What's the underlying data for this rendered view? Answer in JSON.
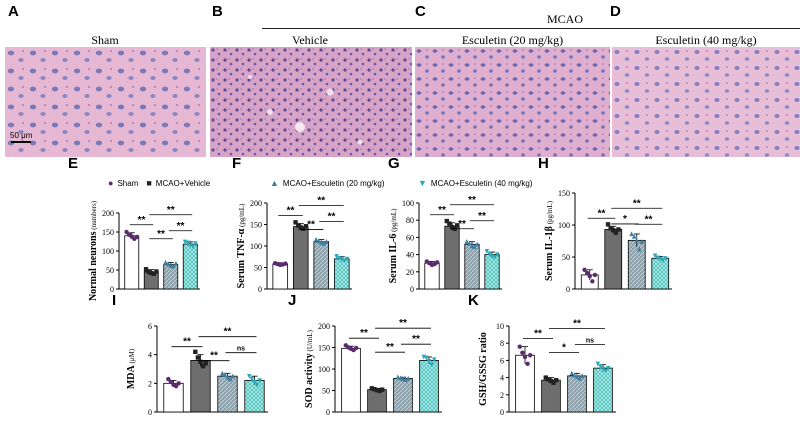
{
  "panels_top": [
    {
      "letter": "A",
      "label": "Sham"
    },
    {
      "letter": "B",
      "label": "Vehicle"
    },
    {
      "letter": "C",
      "label": "Esculetin (20 mg/kg)"
    },
    {
      "letter": "D",
      "label": "Esculetin (40 mg/kg)"
    }
  ],
  "mcao_label": "MCAO",
  "scale_bar": "50 μm",
  "legend": {
    "sham": "Sham",
    "vehicle": "MCAO+Vehicle",
    "esc20": "MCAO+Esculetin (20 mg/kg)",
    "esc40": "MCAO+Esculetin (40 mg/kg)"
  },
  "colors": {
    "sham_fill": "#ffffff",
    "vehicle_fill": "#6e6e6e",
    "esc20_fill": "#8fa3ad",
    "esc40_fill": "#4ec6c0",
    "sham_point": "#5c2a6e",
    "vehicle_point": "#222222",
    "esc20_point": "#3a7ea0",
    "esc40_point": "#2aa7b8"
  },
  "chart_data": [
    {
      "letter": "E",
      "type": "bar",
      "ylabel": "Normal neurons",
      "yunit": "(numbers)",
      "ylim": [
        0,
        200
      ],
      "ticks": [
        0,
        50,
        100,
        150,
        200
      ],
      "groups": [
        "Sham",
        "MCAO+Vehicle",
        "MCAO+Esculetin (20 mg/kg)",
        "MCAO+Esculetin (40 mg/kg)"
      ],
      "values": [
        140,
        45,
        65,
        118
      ],
      "errors": [
        8,
        6,
        5,
        6
      ],
      "points": [
        [
          150,
          143,
          138,
          132,
          137
        ],
        [
          52,
          45,
          42,
          40,
          46
        ],
        [
          70,
          66,
          62,
          60,
          67
        ],
        [
          124,
          122,
          116,
          112,
          120
        ]
      ],
      "sig": [
        {
          "a": 0,
          "b": 1,
          "label": "**"
        },
        {
          "a": 1,
          "b": 2,
          "label": "**"
        },
        {
          "a": 2,
          "b": 3,
          "label": "**"
        },
        {
          "a": 1,
          "b": 3,
          "label": "**"
        }
      ]
    },
    {
      "letter": "F",
      "type": "bar",
      "ylabel": "Serum TNF-α",
      "yunit": "(pg/mL)",
      "ylim": [
        0,
        200
      ],
      "ticks": [
        0,
        50,
        100,
        150,
        200
      ],
      "groups": [
        "Sham",
        "MCAO+Vehicle",
        "MCAO+Esculetin (20 mg/kg)",
        "MCAO+Esculetin (40 mg/kg)"
      ],
      "values": [
        58,
        145,
        110,
        70
      ],
      "errors": [
        3,
        7,
        5,
        5
      ],
      "points": [
        [
          60,
          58,
          56,
          57,
          59
        ],
        [
          155,
          148,
          143,
          140,
          146
        ],
        [
          115,
          112,
          108,
          106,
          110
        ],
        [
          76,
          72,
          68,
          66,
          70
        ]
      ],
      "sig": [
        {
          "a": 0,
          "b": 1,
          "label": "**"
        },
        {
          "a": 1,
          "b": 2,
          "label": "**"
        },
        {
          "a": 2,
          "b": 3,
          "label": "**"
        },
        {
          "a": 1,
          "b": 3,
          "label": "**"
        }
      ]
    },
    {
      "letter": "G",
      "type": "bar",
      "ylabel": "Serum IL-6",
      "yunit": "(pg/mL)",
      "ylim": [
        0,
        100
      ],
      "ticks": [
        0,
        20,
        40,
        60,
        80,
        100
      ],
      "groups": [
        "Sham",
        "MCAO+Vehicle",
        "MCAO+Esculetin (20 mg/kg)",
        "MCAO+Esculetin (40 mg/kg)"
      ],
      "values": [
        30,
        73,
        52,
        40
      ],
      "errors": [
        2,
        4,
        3,
        3
      ],
      "points": [
        [
          32,
          30,
          28,
          29,
          31
        ],
        [
          79,
          76,
          72,
          70,
          74
        ],
        [
          55,
          53,
          50,
          49,
          52
        ],
        [
          44,
          41,
          38,
          37,
          40
        ]
      ],
      "sig": [
        {
          "a": 0,
          "b": 1,
          "label": "**"
        },
        {
          "a": 1,
          "b": 2,
          "label": "**"
        },
        {
          "a": 2,
          "b": 3,
          "label": "**"
        },
        {
          "a": 1,
          "b": 3,
          "label": "**"
        }
      ]
    },
    {
      "letter": "H",
      "type": "bar",
      "ylabel": "Serum IL-1β",
      "yunit": "(pg/mL)",
      "ylim": [
        0,
        150
      ],
      "ticks": [
        0,
        50,
        100,
        150
      ],
      "groups": [
        "Sham",
        "MCAO+Vehicle",
        "MCAO+Esculetin (20 mg/kg)",
        "MCAO+Esculetin (40 mg/kg)"
      ],
      "values": [
        22,
        93,
        76,
        48
      ],
      "errors": [
        8,
        5,
        10,
        3
      ],
      "points": [
        [
          30,
          25,
          20,
          12,
          22
        ],
        [
          101,
          95,
          92,
          88,
          93
        ],
        [
          86,
          82,
          76,
          62,
          74
        ],
        [
          52,
          49,
          47,
          45,
          48
        ]
      ],
      "sig": [
        {
          "a": 0,
          "b": 1,
          "label": "**"
        },
        {
          "a": 1,
          "b": 2,
          "label": "*"
        },
        {
          "a": 2,
          "b": 3,
          "label": "**"
        },
        {
          "a": 1,
          "b": 3,
          "label": "**"
        }
      ]
    },
    {
      "letter": "I",
      "type": "bar",
      "ylabel": "MDA",
      "yunit": "(μM)",
      "ylim": [
        0,
        6
      ],
      "ticks": [
        0,
        2,
        4,
        6
      ],
      "groups": [
        "Sham",
        "MCAO+Vehicle",
        "MCAO+Esculetin (20 mg/kg)",
        "MCAO+Esculetin (40 mg/kg)"
      ],
      "values": [
        2.0,
        3.6,
        2.5,
        2.2
      ],
      "errors": [
        0.2,
        0.4,
        0.2,
        0.3
      ],
      "points": [
        [
          2.3,
          2.1,
          1.9,
          1.8,
          2.0
        ],
        [
          4.2,
          3.8,
          3.5,
          3.2,
          3.4
        ],
        [
          2.7,
          2.6,
          2.4,
          2.3,
          2.5
        ],
        [
          2.5,
          2.3,
          2.1,
          1.9,
          2.2
        ]
      ],
      "sig": [
        {
          "a": 0,
          "b": 1,
          "label": "**"
        },
        {
          "a": 1,
          "b": 2,
          "label": "**"
        },
        {
          "a": 2,
          "b": 3,
          "label": "ns"
        },
        {
          "a": 1,
          "b": 3,
          "label": "**"
        }
      ]
    },
    {
      "letter": "J",
      "type": "bar",
      "ylabel": "SOD activity",
      "yunit": "(U/mL)",
      "ylim": [
        0,
        200
      ],
      "ticks": [
        0,
        50,
        100,
        150,
        200
      ],
      "groups": [
        "Sham",
        "MCAO+Vehicle",
        "MCAO+Esculetin (20 mg/kg)",
        "MCAO+Esculetin (40 mg/kg)"
      ],
      "values": [
        148,
        52,
        78,
        120
      ],
      "errors": [
        5,
        3,
        3,
        8
      ],
      "points": [
        [
          155,
          150,
          147,
          144,
          149
        ],
        [
          55,
          53,
          51,
          49,
          52
        ],
        [
          81,
          79,
          77,
          75,
          78
        ],
        [
          128,
          126,
          118,
          110,
          122
        ]
      ],
      "sig": [
        {
          "a": 0,
          "b": 1,
          "label": "**"
        },
        {
          "a": 1,
          "b": 2,
          "label": "**"
        },
        {
          "a": 2,
          "b": 3,
          "label": "**"
        },
        {
          "a": 1,
          "b": 3,
          "label": "**"
        }
      ]
    },
    {
      "letter": "K",
      "type": "bar",
      "ylabel": "GSH/GSSG ratio",
      "yunit": "",
      "ylim": [
        0,
        10
      ],
      "ticks": [
        0,
        2,
        4,
        6,
        8,
        10
      ],
      "groups": [
        "Sham",
        "MCAO+Vehicle",
        "MCAO+Esculetin (20 mg/kg)",
        "MCAO+Esculetin (40 mg/kg)"
      ],
      "values": [
        6.6,
        3.7,
        4.2,
        5.1
      ],
      "errors": [
        1.0,
        0.3,
        0.3,
        0.4
      ],
      "points": [
        [
          7.6,
          6.9,
          6.4,
          5.6,
          6.6
        ],
        [
          4.0,
          3.8,
          3.6,
          3.4,
          3.7
        ],
        [
          4.5,
          4.3,
          4.1,
          3.9,
          4.2
        ],
        [
          5.6,
          5.3,
          5.0,
          4.8,
          5.1
        ]
      ],
      "sig": [
        {
          "a": 0,
          "b": 1,
          "label": "**"
        },
        {
          "a": 1,
          "b": 2,
          "label": "*"
        },
        {
          "a": 2,
          "b": 3,
          "label": "ns"
        },
        {
          "a": 1,
          "b": 3,
          "label": "**"
        }
      ]
    }
  ]
}
